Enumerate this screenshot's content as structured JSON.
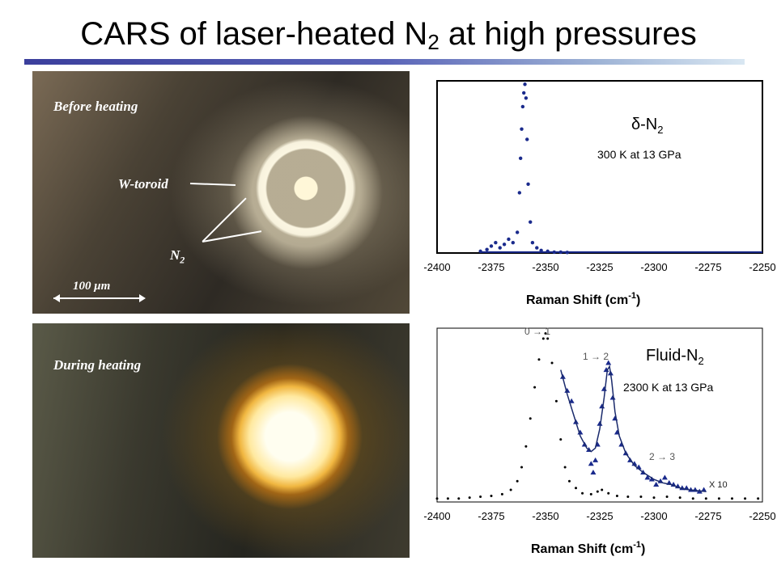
{
  "slide": {
    "title_main": "CARS of laser-heated N",
    "title_sub": "2",
    "title_tail": " at high pressures"
  },
  "photo_before": {
    "label": "Before heating",
    "w_toroid_label": "W-toroid",
    "n2_label": "N",
    "n2_sub": "2",
    "scale_label": "100 μm"
  },
  "photo_during": {
    "label": "During heating"
  },
  "chart_data": [
    {
      "type": "scatter",
      "title": "",
      "phase_label": "δ-N",
      "phase_sub": "2",
      "condition_label": "300 K at 13 GPa",
      "xlabel": "Raman Shift (cm",
      "xlabel_sup": "-1",
      "xlabel_tail": ")",
      "xlim": [
        -2400,
        -2250
      ],
      "ylim": [
        0,
        1
      ],
      "x_ticks": [
        "-2400",
        "-2375",
        "-2350",
        "-2325",
        "-2300",
        "-2275",
        "-2250"
      ],
      "series": [
        {
          "color": "#1a2a8c",
          "points": [
            [
              -2380,
              0.01
            ],
            [
              -2377,
              0.02
            ],
            [
              -2375,
              0.04
            ],
            [
              -2373,
              0.06
            ],
            [
              -2371,
              0.03
            ],
            [
              -2369,
              0.05
            ],
            [
              -2367,
              0.08
            ],
            [
              -2365,
              0.06
            ],
            [
              -2363,
              0.12
            ],
            [
              -2362,
              0.35
            ],
            [
              -2361.5,
              0.55
            ],
            [
              -2361,
              0.72
            ],
            [
              -2360.5,
              0.85
            ],
            [
              -2360,
              0.93
            ],
            [
              -2359.5,
              0.98
            ],
            [
              -2359,
              0.9
            ],
            [
              -2358.5,
              0.66
            ],
            [
              -2358,
              0.4
            ],
            [
              -2357,
              0.18
            ],
            [
              -2356,
              0.06
            ],
            [
              -2354,
              0.03
            ],
            [
              -2352,
              0.015
            ],
            [
              -2349,
              0.01
            ],
            [
              -2346,
              0.005
            ],
            [
              -2343,
              0.005
            ],
            [
              -2340,
              0.003
            ]
          ]
        }
      ]
    },
    {
      "type": "scatter",
      "title": "",
      "phase_label": "Fluid-N",
      "phase_sub": "2",
      "condition_label": "2300 K at 13 GPa",
      "xlabel": "Raman Shift (cm",
      "xlabel_sup": "-1",
      "xlabel_tail": ")",
      "xlim": [
        -2400,
        -2250
      ],
      "ylim": [
        0,
        1
      ],
      "x_ticks": [
        "-2400",
        "-2375",
        "-2350",
        "-2325",
        "-2300",
        "-2275",
        "-2250"
      ],
      "annotations": [
        "0 → 1",
        "1 → 2",
        "2 → 3",
        "X 10"
      ],
      "series": [
        {
          "name": "",
          "color": "#000000",
          "points": [
            [
              -2400,
              0.02
            ],
            [
              -2395,
              0.02
            ],
            [
              -2390,
              0.02
            ],
            [
              -2385,
              0.025
            ],
            [
              -2380,
              0.03
            ],
            [
              -2375,
              0.035
            ],
            [
              -2370,
              0.045
            ],
            [
              -2366,
              0.07
            ],
            [
              -2363,
              0.12
            ],
            [
              -2361,
              0.2
            ],
            [
              -2359,
              0.32
            ],
            [
              -2357,
              0.48
            ],
            [
              -2355,
              0.66
            ],
            [
              -2353,
              0.82
            ],
            [
              -2351,
              0.94
            ],
            [
              -2350,
              0.97
            ],
            [
              -2349,
              0.94
            ],
            [
              -2347,
              0.8
            ],
            [
              -2345,
              0.58
            ],
            [
              -2343,
              0.36
            ],
            [
              -2341,
              0.2
            ],
            [
              -2339,
              0.12
            ],
            [
              -2336,
              0.08
            ],
            [
              -2333,
              0.05
            ],
            [
              -2329,
              0.045
            ],
            [
              -2326,
              0.06
            ],
            [
              -2324,
              0.07
            ],
            [
              -2321,
              0.05
            ],
            [
              -2317,
              0.035
            ],
            [
              -2312,
              0.03
            ],
            [
              -2306,
              0.03
            ],
            [
              -2300,
              0.025
            ],
            [
              -2294,
              0.03
            ],
            [
              -2288,
              0.025
            ],
            [
              -2282,
              0.02
            ],
            [
              -2276,
              0.02
            ],
            [
              -2270,
              0.02
            ],
            [
              -2264,
              0.02
            ],
            [
              -2258,
              0.02
            ],
            [
              -2252,
              0.02
            ]
          ]
        },
        {
          "name": "",
          "color": "#1a2a8c",
          "points": [
            [
              -2342,
              0.72
            ],
            [
              -2340,
              0.64
            ],
            [
              -2338,
              0.58
            ],
            [
              -2336,
              0.46
            ],
            [
              -2334,
              0.4
            ],
            [
              -2332,
              0.33
            ],
            [
              -2330,
              0.3
            ],
            [
              -2329,
              0.22
            ],
            [
              -2328,
              0.17
            ],
            [
              -2327,
              0.24
            ],
            [
              -2326,
              0.33
            ],
            [
              -2325,
              0.45
            ],
            [
              -2324,
              0.55
            ],
            [
              -2323,
              0.65
            ],
            [
              -2322,
              0.76
            ],
            [
              -2321,
              0.8
            ],
            [
              -2320,
              0.74
            ],
            [
              -2319,
              0.6
            ],
            [
              -2318,
              0.48
            ],
            [
              -2317,
              0.4
            ],
            [
              -2315,
              0.33
            ],
            [
              -2313,
              0.28
            ],
            [
              -2311,
              0.24
            ],
            [
              -2309,
              0.22
            ],
            [
              -2307,
              0.2
            ],
            [
              -2305,
              0.17
            ],
            [
              -2303,
              0.14
            ],
            [
              -2301,
              0.13
            ],
            [
              -2299,
              0.1
            ],
            [
              -2297,
              0.12
            ],
            [
              -2295,
              0.14
            ],
            [
              -2293,
              0.11
            ],
            [
              -2291,
              0.1
            ],
            [
              -2289,
              0.09
            ],
            [
              -2287,
              0.08
            ],
            [
              -2285,
              0.08
            ],
            [
              -2283,
              0.07
            ],
            [
              -2281,
              0.07
            ],
            [
              -2279,
              0.06
            ],
            [
              -2277,
              0.07
            ]
          ]
        },
        {
          "name": "",
          "color": "#1a2a6c",
          "line": true,
          "points": [
            [
              -2343,
              0.76
            ],
            [
              -2340,
              0.62
            ],
            [
              -2337,
              0.5
            ],
            [
              -2334,
              0.38
            ],
            [
              -2331,
              0.31
            ],
            [
              -2329,
              0.29
            ],
            [
              -2327,
              0.31
            ],
            [
              -2325,
              0.42
            ],
            [
              -2323,
              0.6
            ],
            [
              -2321.5,
              0.76
            ],
            [
              -2320.5,
              0.78
            ],
            [
              -2319.5,
              0.7
            ],
            [
              -2318,
              0.52
            ],
            [
              -2316,
              0.38
            ],
            [
              -2313,
              0.28
            ],
            [
              -2309,
              0.21
            ],
            [
              -2305,
              0.17
            ],
            [
              -2300,
              0.13
            ],
            [
              -2296,
              0.11
            ],
            [
              -2292,
              0.1
            ],
            [
              -2288,
              0.08
            ],
            [
              -2284,
              0.07
            ],
            [
              -2280,
              0.065
            ],
            [
              -2276,
              0.06
            ]
          ]
        }
      ]
    }
  ]
}
